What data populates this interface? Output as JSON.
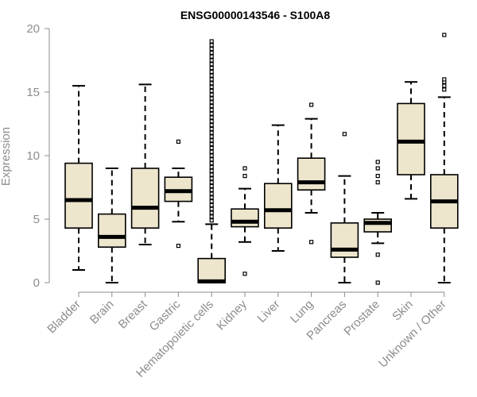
{
  "chart_data": {
    "type": "boxplot",
    "title": "ENSG00000143546 - S100A8",
    "xlabel": "",
    "ylabel": "Expression",
    "ylim": [
      0,
      20
    ],
    "yticks": [
      0,
      5,
      10,
      15,
      20
    ],
    "colors": {
      "box_fill": "#ede6cd",
      "stroke": "#000000",
      "axis": "#8c8c8c"
    },
    "categories": [
      "Bladder",
      "Brain",
      "Breast",
      "Gastric",
      "Hematopoietic cells",
      "Kidney",
      "Liver",
      "Lung",
      "Pancreas",
      "Prostate",
      "Skin",
      "Unknown / Other"
    ],
    "boxes": [
      {
        "name": "Bladder",
        "whisker_low": 1.0,
        "q1": 4.3,
        "median": 6.5,
        "q3": 9.4,
        "whisker_high": 15.5,
        "outliers": []
      },
      {
        "name": "Brain",
        "whisker_low": 0.0,
        "q1": 2.8,
        "median": 3.6,
        "q3": 5.4,
        "whisker_high": 9.0,
        "outliers": []
      },
      {
        "name": "Breast",
        "whisker_low": 3.0,
        "q1": 4.3,
        "median": 5.9,
        "q3": 9.0,
        "whisker_high": 15.6,
        "outliers": []
      },
      {
        "name": "Gastric",
        "whisker_low": 4.8,
        "q1": 6.4,
        "median": 7.2,
        "q3": 8.3,
        "whisker_high": 9.0,
        "outliers": [
          2.9,
          11.1
        ]
      },
      {
        "name": "Hematopoietic cells",
        "whisker_low": 0.0,
        "q1": 0.0,
        "median": 0.1,
        "q3": 1.9,
        "whisker_high": 4.6,
        "outliers": [
          4.9,
          5.2,
          5.5,
          5.8,
          6.1,
          6.4,
          6.7,
          7.0,
          7.3,
          7.6,
          7.9,
          8.2,
          8.5,
          8.8,
          9.1,
          9.4,
          9.7,
          10.0,
          10.3,
          10.6,
          10.9,
          11.2,
          11.5,
          11.8,
          12.1,
          12.4,
          12.7,
          13.0,
          13.3,
          13.6,
          13.9,
          14.2,
          14.5,
          14.8,
          15.1,
          15.4,
          15.7,
          16.0,
          16.3,
          16.6,
          16.9,
          17.2,
          17.5,
          17.8,
          18.1,
          18.4,
          18.7,
          19.0
        ]
      },
      {
        "name": "Kidney",
        "whisker_low": 3.2,
        "q1": 4.4,
        "median": 4.8,
        "q3": 5.8,
        "whisker_high": 7.4,
        "outliers": [
          0.7,
          8.4,
          9.0
        ]
      },
      {
        "name": "Liver",
        "whisker_low": 2.5,
        "q1": 4.3,
        "median": 5.7,
        "q3": 7.8,
        "whisker_high": 12.4,
        "outliers": []
      },
      {
        "name": "Lung",
        "whisker_low": 5.5,
        "q1": 7.3,
        "median": 7.9,
        "q3": 9.8,
        "whisker_high": 12.9,
        "outliers": [
          3.2,
          14.0
        ]
      },
      {
        "name": "Pancreas",
        "whisker_low": 0.0,
        "q1": 2.0,
        "median": 2.6,
        "q3": 4.7,
        "whisker_high": 8.4,
        "outliers": [
          11.7
        ]
      },
      {
        "name": "Prostate",
        "whisker_low": 3.1,
        "q1": 4.0,
        "median": 4.7,
        "q3": 5.0,
        "whisker_high": 5.5,
        "outliers": [
          0.0,
          2.2,
          7.9,
          8.4,
          9.0,
          9.5
        ]
      },
      {
        "name": "Skin",
        "whisker_low": 6.6,
        "q1": 8.5,
        "median": 11.1,
        "q3": 14.1,
        "whisker_high": 15.8,
        "outliers": []
      },
      {
        "name": "Unknown / Other",
        "whisker_low": 0.0,
        "q1": 4.3,
        "median": 6.4,
        "q3": 8.5,
        "whisker_high": 14.6,
        "outliers": [
          15.2,
          15.5,
          15.8,
          16.0,
          19.5
        ]
      }
    ]
  }
}
